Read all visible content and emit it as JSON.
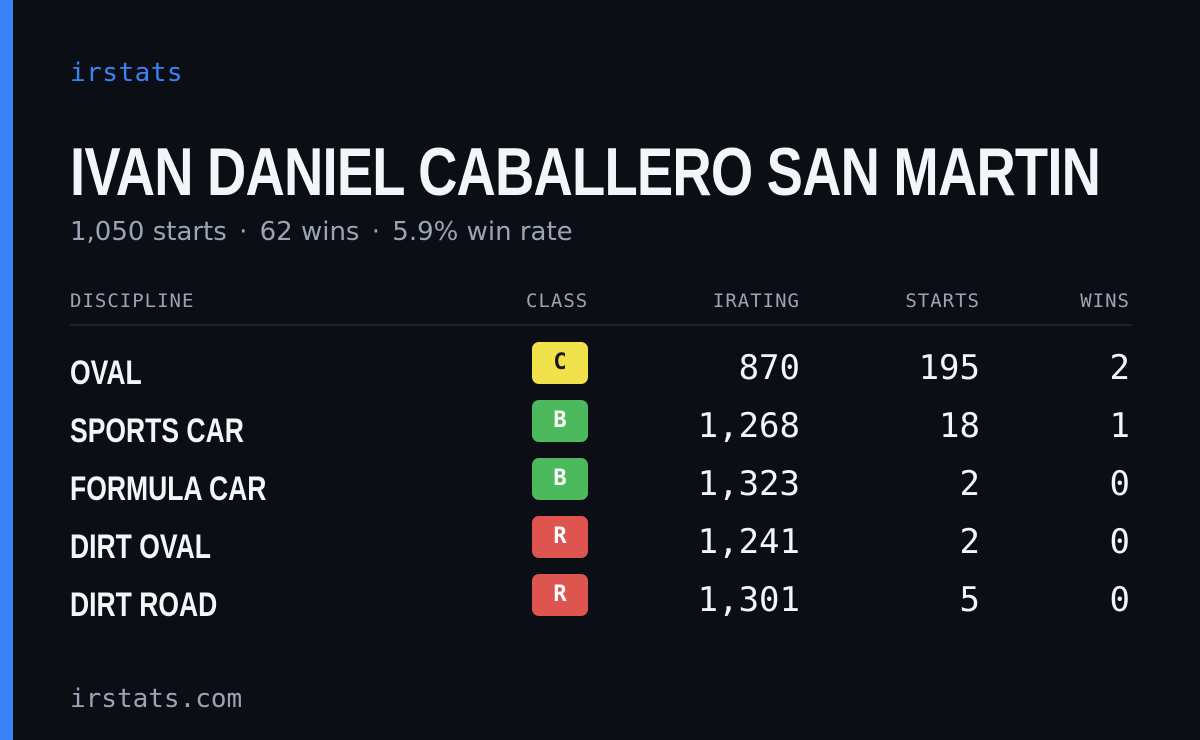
{
  "brand": "irstats",
  "driver_name": "IVAN DANIEL CABALLERO SAN MARTIN",
  "summary": {
    "starts": "1,050 starts",
    "wins": "62 wins",
    "win_rate": "5.9% win rate",
    "separator": "·"
  },
  "table": {
    "headers": {
      "discipline": "DISCIPLINE",
      "class": "CLASS",
      "irating": "IRATING",
      "starts": "STARTS",
      "wins": "WINS"
    },
    "rows": [
      {
        "discipline": "OVAL",
        "class": "C",
        "class_bg": "#f1e14a",
        "class_fg": "#1a1a1a",
        "irating": "870",
        "starts": "195",
        "wins": "2"
      },
      {
        "discipline": "SPORTS CAR",
        "class": "B",
        "class_bg": "#4cba5c",
        "class_fg": "#ffffff",
        "irating": "1,268",
        "starts": "18",
        "wins": "1"
      },
      {
        "discipline": "FORMULA CAR",
        "class": "B",
        "class_bg": "#4cba5c",
        "class_fg": "#ffffff",
        "irating": "1,323",
        "starts": "2",
        "wins": "0"
      },
      {
        "discipline": "DIRT OVAL",
        "class": "R",
        "class_bg": "#de5550",
        "class_fg": "#ffffff",
        "irating": "1,241",
        "starts": "2",
        "wins": "0"
      },
      {
        "discipline": "DIRT ROAD",
        "class": "R",
        "class_bg": "#de5550",
        "class_fg": "#ffffff",
        "irating": "1,301",
        "starts": "5",
        "wins": "0"
      }
    ]
  },
  "footer": "irstats.com",
  "colors": {
    "background": "#0b0e14",
    "accent": "#3b82f6",
    "text_primary": "#f4f5f8",
    "text_muted": "#9ba3b4"
  }
}
